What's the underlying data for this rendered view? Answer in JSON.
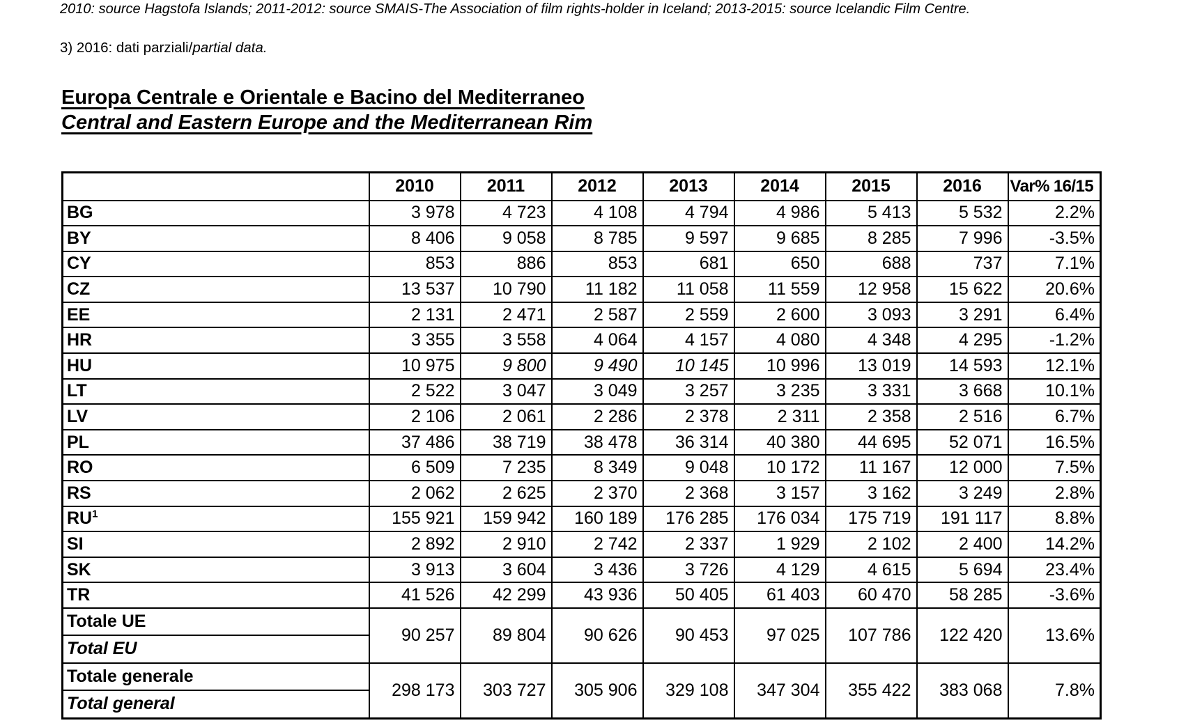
{
  "notes": {
    "sources": "2010: source Hagstofa Islands; 2011-2012: source SMAIS-The Association of film rights-holder in Iceland; 2013-2015: source Icelandic Film Centre.",
    "footnote_prefix": "3) 2016: dati parziali/",
    "footnote_italic": "partial data."
  },
  "title": {
    "it": "Europa Centrale e Orientale e Bacino del Mediterraneo",
    "en": "Central and Eastern Europe and the Mediterranean Rim"
  },
  "colors": {
    "text": "#000000",
    "border": "#000000",
    "background": "#ffffff"
  },
  "table": {
    "columns": [
      "2010",
      "2011",
      "2012",
      "2013",
      "2014",
      "2015",
      "2016",
      "Var% 16/15"
    ],
    "rows": [
      {
        "label": "BG",
        "values": [
          "3 978",
          "4 723",
          "4 108",
          "4 794",
          "4 986",
          "5 413",
          "5 532"
        ],
        "var": "2.2%"
      },
      {
        "label": "BY",
        "values": [
          "8 406",
          "9 058",
          "8 785",
          "9 597",
          "9 685",
          "8 285",
          "7 996"
        ],
        "var": "-3.5%"
      },
      {
        "label": "CY",
        "values": [
          "853",
          "886",
          "853",
          "681",
          "650",
          "688",
          "737"
        ],
        "var": "7.1%"
      },
      {
        "label": "CZ",
        "values": [
          "13 537",
          "10 790",
          "11 182",
          "11 058",
          "11 559",
          "12 958",
          "15 622"
        ],
        "var": "20.6%"
      },
      {
        "label": "EE",
        "values": [
          "2 131",
          "2 471",
          "2 587",
          "2 559",
          "2 600",
          "3 093",
          "3 291"
        ],
        "var": "6.4%"
      },
      {
        "label": "HR",
        "values": [
          "3 355",
          "3 558",
          "4 064",
          "4 157",
          "4 080",
          "4 348",
          "4 295"
        ],
        "var": "-1.2%"
      },
      {
        "label": "HU",
        "values": [
          "10 975",
          "9 800",
          "9 490",
          "10 145",
          "10 996",
          "13 019",
          "14 593"
        ],
        "var": "12.1%",
        "italic_indices": [
          1,
          2,
          3
        ]
      },
      {
        "label": "LT",
        "values": [
          "2 522",
          "3 047",
          "3 049",
          "3 257",
          "3 235",
          "3 331",
          "3 668"
        ],
        "var": "10.1%"
      },
      {
        "label": "LV",
        "values": [
          "2 106",
          "2 061",
          "2 286",
          "2 378",
          "2 311",
          "2 358",
          "2 516"
        ],
        "var": "6.7%"
      },
      {
        "label": "PL",
        "values": [
          "37 486",
          "38 719",
          "38 478",
          "36 314",
          "40 380",
          "44 695",
          "52 071"
        ],
        "var": "16.5%"
      },
      {
        "label": "RO",
        "values": [
          "6 509",
          "7 235",
          "8 349",
          "9 048",
          "10 172",
          "11 167",
          "12 000"
        ],
        "var": "7.5%"
      },
      {
        "label": "RS",
        "values": [
          "2 062",
          "2 625",
          "2 370",
          "2 368",
          "3 157",
          "3 162",
          "3 249"
        ],
        "var": "2.8%"
      },
      {
        "label": "RU",
        "sup": "1",
        "values": [
          "155 921",
          "159 942",
          "160 189",
          "176 285",
          "176 034",
          "175 719",
          "191 117"
        ],
        "var": "8.8%"
      },
      {
        "label": "SI",
        "values": [
          "2 892",
          "2 910",
          "2 742",
          "2 337",
          "1 929",
          "2 102",
          "2 400"
        ],
        "var": "14.2%"
      },
      {
        "label": "SK",
        "values": [
          "3 913",
          "3 604",
          "3 436",
          "3 726",
          "4 129",
          "4 615",
          "5 694"
        ],
        "var": "23.4%"
      },
      {
        "label": "TR",
        "values": [
          "41 526",
          "42 299",
          "43 936",
          "50 405",
          "61 403",
          "60 470",
          "58 285"
        ],
        "var": "-3.6%"
      }
    ],
    "totals": [
      {
        "label_it": "Totale UE",
        "label_en": "Total EU",
        "values": [
          "90 257",
          "89 804",
          "90 626",
          "90 453",
          "97 025",
          "107 786",
          "122 420"
        ],
        "var": "13.6%"
      },
      {
        "label_it": "Totale generale",
        "label_en": "Total general",
        "values": [
          "298 173",
          "303 727",
          "305 906",
          "329 108",
          "347 304",
          "355 422",
          "383 068"
        ],
        "var": "7.8%"
      }
    ]
  }
}
